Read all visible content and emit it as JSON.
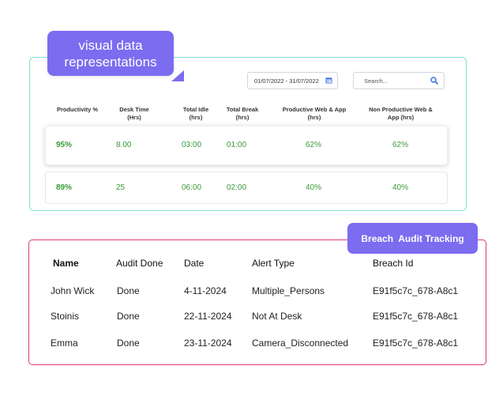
{
  "callout": {
    "line1": "visual data",
    "line2": "representations"
  },
  "filters": {
    "date_range": "01/07/2022 - 31/07/2022",
    "date_icon": "calendar-icon",
    "search_placeholder": "Search...",
    "search_icon": "search-icon"
  },
  "productivity_table": {
    "headers": [
      {
        "l1": "Productivity %",
        "l2": ""
      },
      {
        "l1": "Desk Time",
        "l2": "(Hrs)"
      },
      {
        "l1": "Total Idle",
        "l2": "(hrs)"
      },
      {
        "l1": "Total Break",
        "l2": "(hrs)"
      },
      {
        "l1": "Productive Web & App",
        "l2": "(hrs)"
      },
      {
        "l1": "Non Productive Web &",
        "l2": "App (hrs)"
      }
    ],
    "rows": [
      [
        "95%",
        "8.00",
        "03:00",
        "01:00",
        "62%",
        "62%"
      ],
      [
        "89%",
        "25",
        "06:00",
        "02:00",
        "40%",
        "40%"
      ]
    ],
    "value_color": "#3a9a3a"
  },
  "breach": {
    "tag": "Breach  Audit Tracking",
    "headers": [
      "Name",
      "Audit Done",
      "Date",
      "Alert Type",
      "Breach Id"
    ],
    "rows": [
      [
        "John Wick",
        "Done",
        "4-11-2024",
        "Multiple_Persons",
        "E91f5c7c_678-A8c1"
      ],
      [
        "Stoinis",
        "Done",
        "22-11-2024",
        "Not At Desk",
        "E91f5c7c_678-A8c1"
      ],
      [
        "Emma",
        "Done",
        "23-11-2024",
        "Camera_Disconnected",
        "E91f5c7c_678-A8c1"
      ]
    ]
  },
  "colors": {
    "accent_purple": "#7b6cf0",
    "top_border": "#7fe0cf",
    "breach_border": "#e0357a"
  }
}
